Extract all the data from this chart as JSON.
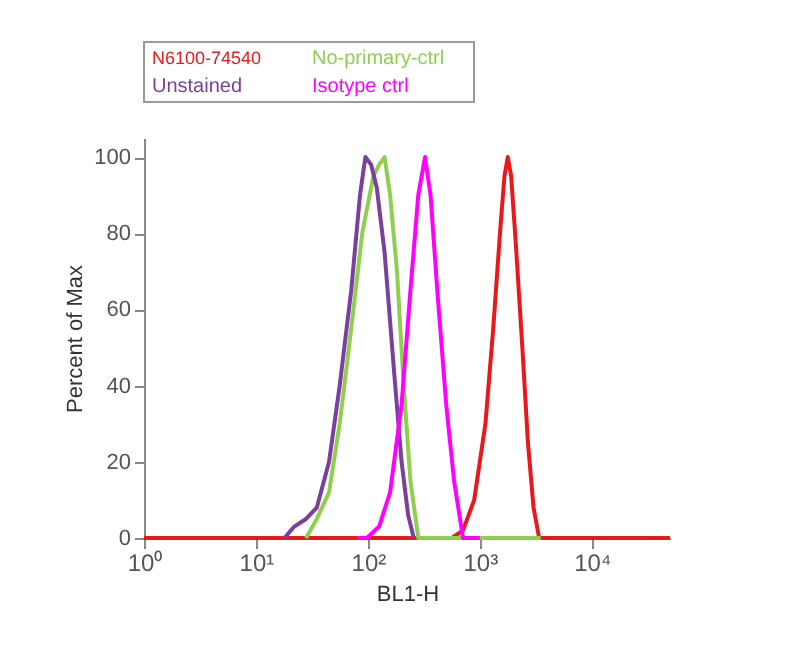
{
  "chart_data": {
    "type": "line",
    "xlabel": "BL1-H",
    "ylabel": "Percent of Max",
    "log": "x",
    "xlim": [
      1,
      50000
    ],
    "xticks": [
      {
        "value": 1,
        "label": "10⁰"
      },
      {
        "value": 10,
        "label": "10¹"
      },
      {
        "value": 100,
        "label": "10²"
      },
      {
        "value": 1000,
        "label": "10³"
      },
      {
        "value": 10000,
        "label": "10⁴"
      }
    ],
    "ylim": [
      0,
      105
    ],
    "yticks": [
      0,
      20,
      40,
      60,
      80,
      100
    ],
    "grid": false,
    "legend": "top left",
    "marker": "none",
    "line_style": "solid",
    "series": [
      {
        "name": "N6100-74540",
        "color": "#e8191a",
        "x": [
          1,
          562,
          708,
          891,
          1122,
          1318,
          1514,
          1660,
          1778,
          1905,
          2089,
          2399,
          2692,
          3020,
          3388,
          50000
        ],
        "values": [
          0,
          0,
          2,
          10,
          30,
          55,
          80,
          95,
          100,
          95,
          78,
          50,
          25,
          8,
          0,
          0
        ]
      },
      {
        "name": "No-primary-ctrl",
        "color": "#8fcf4f",
        "x": [
          28,
          35,
          45,
          56,
          71,
          89,
          112,
          126,
          141,
          158,
          182,
          209,
          240,
          282,
          3500
        ],
        "values": [
          0,
          5,
          12,
          30,
          55,
          80,
          95,
          98,
          100,
          90,
          70,
          40,
          15,
          0,
          0
        ]
      },
      {
        "name": "Unstained",
        "color": "#7b3f9e",
        "x": [
          18,
          22,
          28,
          35,
          45,
          56,
          71,
          85,
          95,
          107,
          120,
          141,
          170,
          200,
          229,
          257
        ],
        "values": [
          0,
          3,
          5,
          8,
          20,
          40,
          65,
          90,
          100,
          98,
          92,
          75,
          45,
          20,
          6,
          0
        ]
      },
      {
        "name": "Isotype ctrl",
        "color": "#ff00ff",
        "x": [
          80,
          98,
          126,
          158,
          200,
          240,
          282,
          324,
          363,
          417,
          501,
          589,
          708,
          1000
        ],
        "values": [
          0,
          0,
          3,
          12,
          35,
          65,
          90,
          100,
          90,
          65,
          35,
          15,
          0,
          0
        ]
      }
    ]
  }
}
